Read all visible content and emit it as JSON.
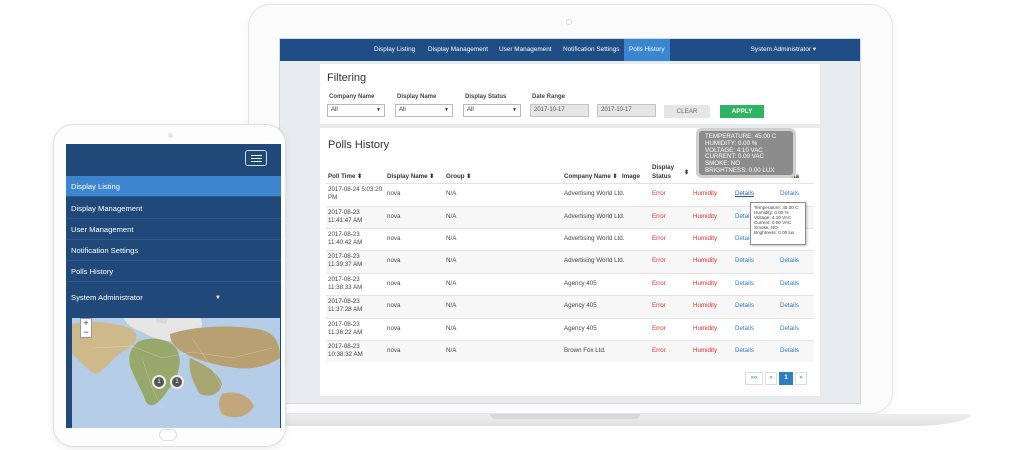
{
  "top_nav": {
    "items": [
      "Display Listing",
      "Display Management",
      "User Management",
      "Notification Settings",
      "Polls History"
    ],
    "active": "Polls History",
    "user_menu": "System Administrator ▾"
  },
  "filtering": {
    "title": "Filtering",
    "company_label": "Company Name",
    "company_value": "All",
    "display_label": "Display Name",
    "display_value": "All",
    "status_label": "Display Status",
    "status_value": "All",
    "date_label": "Date Range",
    "date_from": "2017-10-17",
    "date_to": "2017-10-17",
    "clear_label": "CLEAR",
    "apply_label": "APPLY"
  },
  "polls": {
    "title": "Polls History",
    "columns": {
      "poll_time": "Poll Time ⬍",
      "display_name": "Display Name ⬍",
      "group": "Group ⬍",
      "company_name": "Company Name ⬍",
      "image": "Image",
      "display_status_1": "Display",
      "display_status_2": "Status",
      "sort_icon": "⬍",
      "data": "ata"
    },
    "rows": [
      {
        "time1": "2017-08-24 5:03:20",
        "time2": "PM",
        "display": "nova",
        "group": "N/A",
        "company": "Advertising World Ltd.",
        "status": "Error",
        "sensor": "Humidity",
        "details1": "Details",
        "details2": "Details"
      },
      {
        "time1": "2017-08-23",
        "time2": "11:41:47 AM",
        "display": "nova",
        "group": "N/A",
        "company": "Advertising World Ltd.",
        "status": "Error",
        "sensor": "Humidity",
        "details1": "Detai",
        "details2": ""
      },
      {
        "time1": "2017-08-23",
        "time2": "11:40:42 AM",
        "display": "nova",
        "group": "N/A",
        "company": "Advertising World Ltd.",
        "status": "Error",
        "sensor": "Humidity",
        "details1": "Detai",
        "details2": ""
      },
      {
        "time1": "2017-08-23",
        "time2": "11:39:37 AM",
        "display": "nova",
        "group": "N/A",
        "company": "Advertising World Ltd.",
        "status": "Error",
        "sensor": "Humidity",
        "details1": "Details",
        "details2": "Details"
      },
      {
        "time1": "2017-08-23",
        "time2": "11:38:33 AM",
        "display": "nova",
        "group": "N/A",
        "company": "Agency 405",
        "status": "Error",
        "sensor": "Humidity",
        "details1": "Details",
        "details2": "Details"
      },
      {
        "time1": "2017-08-23",
        "time2": "11:37:28 AM",
        "display": "nova",
        "group": "N/A",
        "company": "Agency 405",
        "status": "Error",
        "sensor": "Humidity",
        "details1": "Details",
        "details2": "Details"
      },
      {
        "time1": "2017-08-23",
        "time2": "11:36:22 AM",
        "display": "nova",
        "group": "N/A",
        "company": "Agency 405",
        "status": "Error",
        "sensor": "Humidity",
        "details1": "Details",
        "details2": "Details"
      },
      {
        "time1": "2017-08-23",
        "time2": "10:38:32 AM",
        "display": "nova",
        "group": "N/A",
        "company": "Brown Fox Ltd.",
        "status": "Error",
        "sensor": "Humidity",
        "details1": "Details",
        "details2": "Details"
      }
    ],
    "pagination": [
      "««",
      "«",
      "1",
      "»"
    ],
    "active_page": "1"
  },
  "tooltip_big": {
    "lines": [
      "TEMPERATURE: 45.00 C",
      "HUMIDITY: 0.00 %",
      "VOLTAGE: 4.10 VAC",
      "CURRENT: 0.00 VAC",
      "SMOKE: NO",
      "BRIGHTNESS: 0.00 LUX"
    ]
  },
  "tooltip_small": {
    "lines": [
      "Temperature: 45.00 C",
      "Humidity: 0.00 %",
      "Voltage: 4.10 VAC",
      "Current: 0.00 VAC",
      "Smoke: NO",
      "Brightness: 0.00 lux"
    ]
  },
  "tablet": {
    "nav": [
      "Display Listing",
      "Display Management",
      "User Management",
      "Notification Settings",
      "Polls History",
      "System Administrator"
    ],
    "active": "Display Listing",
    "map_markers": [
      "1",
      "1"
    ]
  },
  "colors": {
    "nav_bg": "#1e4e85",
    "nav_active": "#3a86d1",
    "error": "#d9302c",
    "link": "#2f7ec4",
    "apply": "#2fb464"
  }
}
